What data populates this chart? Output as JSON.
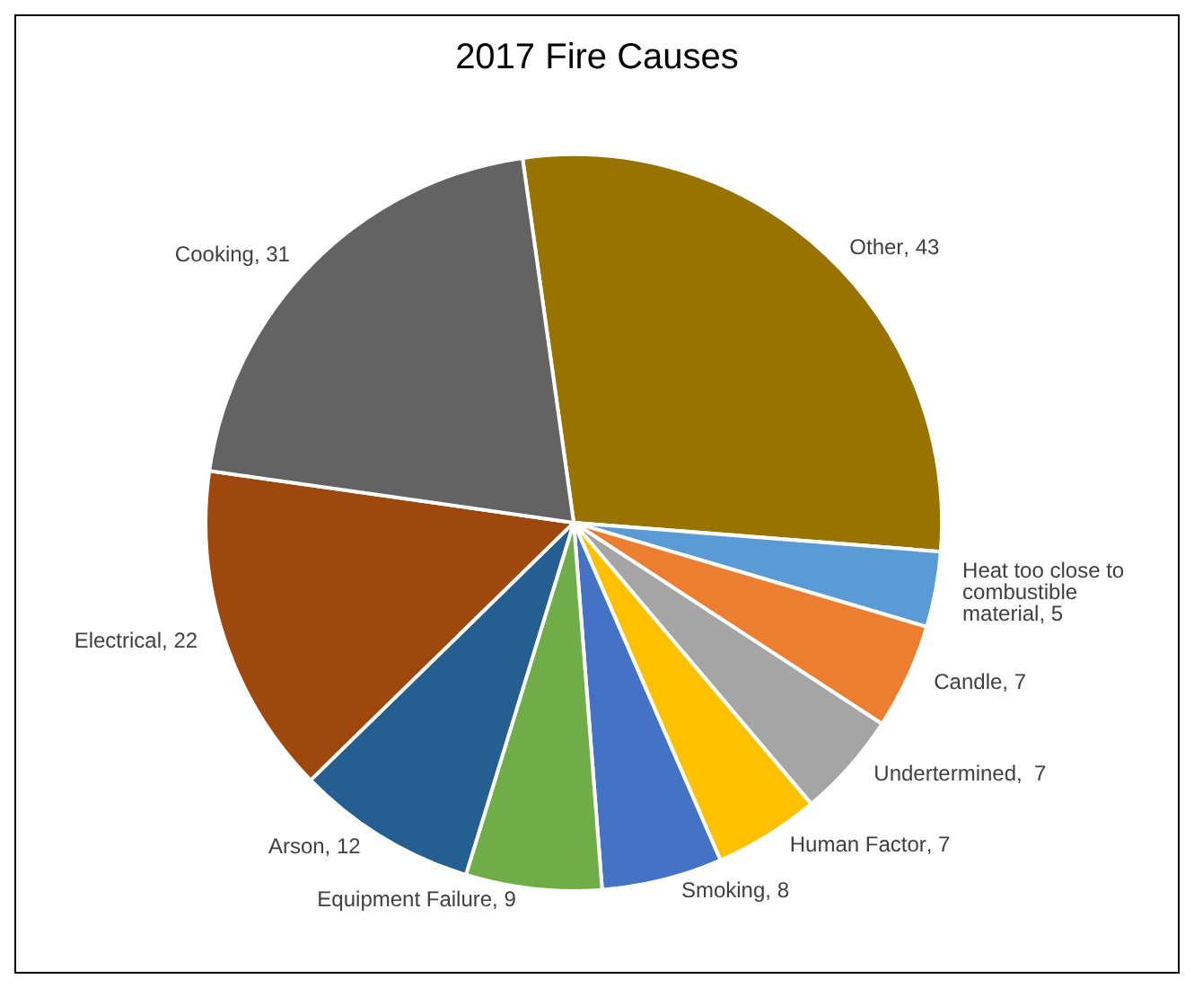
{
  "chart_data": {
    "type": "pie",
    "title": "2017 Fire Causes",
    "categories": [
      "Other",
      "Heat too close to combustible material",
      "Candle",
      "Undertermined",
      "Human Factor",
      "Smoking",
      "Equipment Failure",
      "Arson",
      "Electrical",
      "Cooking"
    ],
    "values": [
      43,
      5,
      7,
      7,
      7,
      8,
      9,
      12,
      22,
      31
    ],
    "colors": [
      "#997300",
      "#5b9bd5",
      "#ed7d31",
      "#a5a5a5",
      "#ffc000",
      "#4472c4",
      "#70ad47",
      "#255e91",
      "#9e480e",
      "#636363"
    ],
    "value_labels": [
      ", 43",
      ", 5",
      ", 7",
      ",  7",
      ", 7",
      ", 8",
      ", 9",
      ", 12",
      ", 22",
      ", 31"
    ],
    "legend": false
  }
}
